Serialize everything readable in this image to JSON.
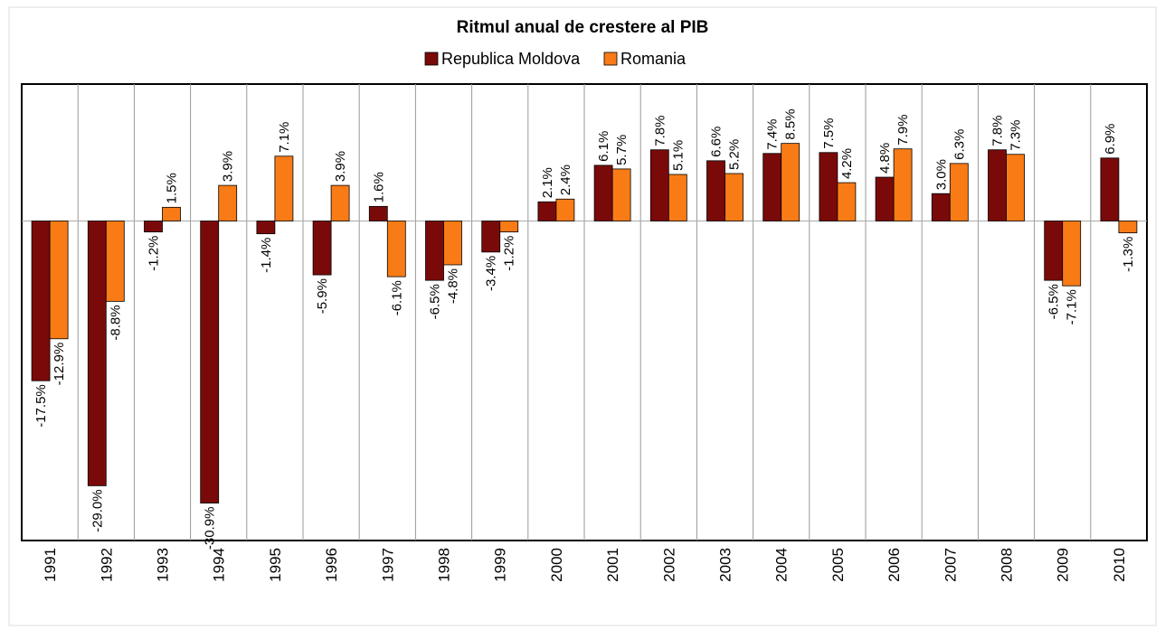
{
  "chart_data": {
    "type": "bar",
    "title": "Ritmul anual de crestere al PIB",
    "categories": [
      "1991",
      "1992",
      "1993",
      "1994",
      "1995",
      "1996",
      "1997",
      "1998",
      "1999",
      "2000",
      "2001",
      "2002",
      "2003",
      "2004",
      "2005",
      "2006",
      "2007",
      "2008",
      "2009",
      "2010"
    ],
    "series": [
      {
        "name": "Republica Moldova",
        "color": "#7a0a0a",
        "values": [
          -17.5,
          -29.0,
          -1.2,
          -30.9,
          -1.4,
          -5.9,
          1.6,
          -6.5,
          -3.4,
          2.1,
          6.1,
          7.8,
          6.6,
          7.4,
          7.5,
          4.8,
          3.0,
          7.8,
          -6.5,
          6.9
        ],
        "value_labels": [
          "-17.5%",
          "-29.0%",
          "-1.2%",
          "-30.9%",
          "-1.4%",
          "-5.9%",
          "1.6%",
          "-6.5%",
          "-3.4%",
          "2.1%",
          "6.1%",
          "7.8%",
          "6.6%",
          "7.4%",
          "7.5%",
          "4.8%",
          "3.0%",
          "7.8%",
          "-6.5%",
          "6.9%"
        ]
      },
      {
        "name": "Romania",
        "color": "#f97b16",
        "values": [
          -12.9,
          -8.8,
          1.5,
          3.9,
          7.1,
          3.9,
          -6.1,
          -4.8,
          -1.2,
          2.4,
          5.7,
          5.1,
          5.2,
          8.5,
          4.2,
          7.9,
          6.3,
          7.3,
          -7.1,
          -1.3
        ],
        "value_labels": [
          "-12.9%",
          "-8.8%",
          "1.5%",
          "3.9%",
          "7.1%",
          "3.9%",
          "-6.1%",
          "-4.8%",
          "-1.2%",
          "2.4%",
          "5.7%",
          "5.1%",
          "5.2%",
          "8.5%",
          "4.2%",
          "7.9%",
          "6.3%",
          "7.3%",
          "-7.1%",
          "-1.3%"
        ]
      }
    ],
    "ylim": [
      -35,
      15
    ]
  }
}
